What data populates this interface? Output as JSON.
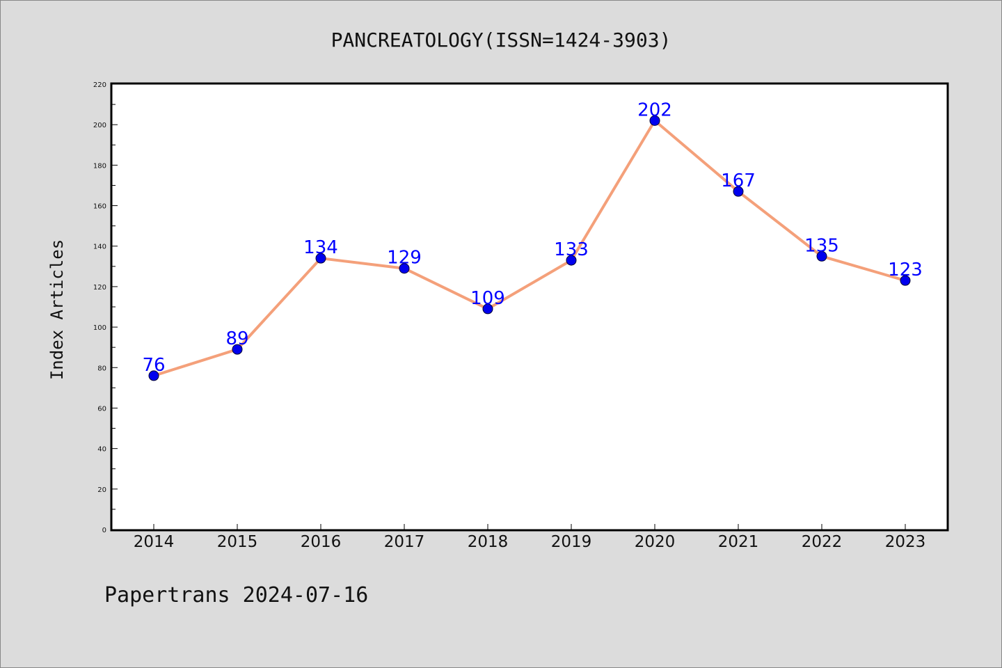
{
  "chart_data": {
    "type": "line",
    "title": "PANCREATOLOGY(ISSN=1424-3903)",
    "xlabel": "",
    "ylabel": "Index Articles",
    "categories": [
      "2014",
      "2015",
      "2016",
      "2017",
      "2018",
      "2019",
      "2020",
      "2021",
      "2022",
      "2023"
    ],
    "series": [
      {
        "values": [
          76,
          89,
          134,
          129,
          109,
          133,
          202,
          167,
          135,
          123
        ]
      }
    ],
    "ylim": [
      0,
      220
    ],
    "yticks": [
      0,
      20,
      40,
      60,
      80,
      100,
      120,
      140,
      160,
      180,
      200,
      220
    ],
    "grid": false,
    "data_labels": true
  },
  "footer": {
    "text": "Papertrans 2024-07-16"
  },
  "colors": {
    "line": "#f4a07a",
    "marker": "#0000ee",
    "marker_edge": "#000033",
    "data_label": "#0000ff",
    "background": "#dcdcdc",
    "plot_background": "#ffffff"
  }
}
